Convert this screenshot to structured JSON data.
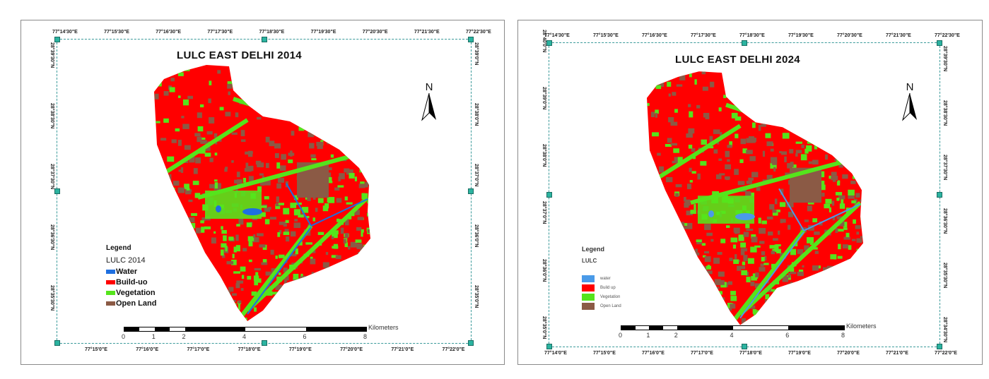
{
  "maps": [
    {
      "title": "LULC EAST DELHI 2014",
      "top_labels": [
        "77°14'30\"E",
        "77°15'30\"E",
        "77°16'30\"E",
        "77°17'30\"E",
        "77°18'30\"E",
        "77°19'30\"E",
        "77°20'30\"E",
        "77°21'30\"E",
        "77°22'30\"E"
      ],
      "bottom_labels": [
        "77°15'0\"E",
        "77°16'0\"E",
        "77°17'0\"E",
        "77°18'0\"E",
        "77°19'0\"E",
        "77°20'0\"E",
        "77°21'0\"E",
        "77°22'0\"E"
      ],
      "left_labels": [
        "28°39'30\"N",
        "28°38'30\"N",
        "28°37'30\"N",
        "28°36'30\"N",
        "28°35'30\"N"
      ],
      "right_labels": [
        "28°39'0\"N",
        "28°38'0\"N",
        "28°37'0\"N",
        "28°36'0\"N",
        "28°35'0\"N"
      ],
      "legend": {
        "heading": "Legend",
        "subtitle": "LULC 2014",
        "items": [
          "Water",
          "Build-uo",
          "Vegetation",
          "Open Land"
        ]
      },
      "north": "N",
      "scale": {
        "ticks": [
          "0",
          "1",
          "2",
          "4",
          "6",
          "8"
        ],
        "unit": "Kilometers"
      }
    },
    {
      "title": "LULC EAST DELHI 2024",
      "top_labels": [
        "77°14'30\"E",
        "77°15'30\"E",
        "77°16'30\"E",
        "77°17'30\"E",
        "77°18'30\"E",
        "77°19'30\"E",
        "77°20'30\"E",
        "77°21'30\"E",
        "77°22'30\"E"
      ],
      "bottom_labels": [
        "77°14'0\"E",
        "77°15'0\"E",
        "77°16'0\"E",
        "77°17'0\"E",
        "77°18'0\"E",
        "77°19'0\"E",
        "77°20'0\"E",
        "77°21'0\"E",
        "77°22'0\"E"
      ],
      "left_labels": [
        "28°40'0\"N",
        "28°39'0\"N",
        "28°38'0\"N",
        "28°37'0\"N",
        "28°36'0\"N",
        "28°35'0\"N"
      ],
      "right_labels": [
        "28°39'30\"N",
        "28°38'30\"N",
        "28°37'30\"N",
        "28°36'30\"N",
        "28°35'30\"N",
        "28°34'30\"N"
      ],
      "legend": {
        "heading": "Legend",
        "subtitle": "LULC",
        "items": [
          "water",
          "Build up",
          "Vegetation",
          "Open Land"
        ]
      },
      "north": "N",
      "scale": {
        "ticks": [
          "0",
          "1",
          "2",
          "4",
          "6",
          "8"
        ],
        "unit": "Kilometers"
      }
    }
  ],
  "colors": {
    "water": "#1e6fe0",
    "built_up": "#ff0000",
    "vegetation": "#55e41c",
    "open_land": "#8b5a45",
    "water_2024": "#4a9ae8",
    "neatline": "#3a9a9a"
  }
}
